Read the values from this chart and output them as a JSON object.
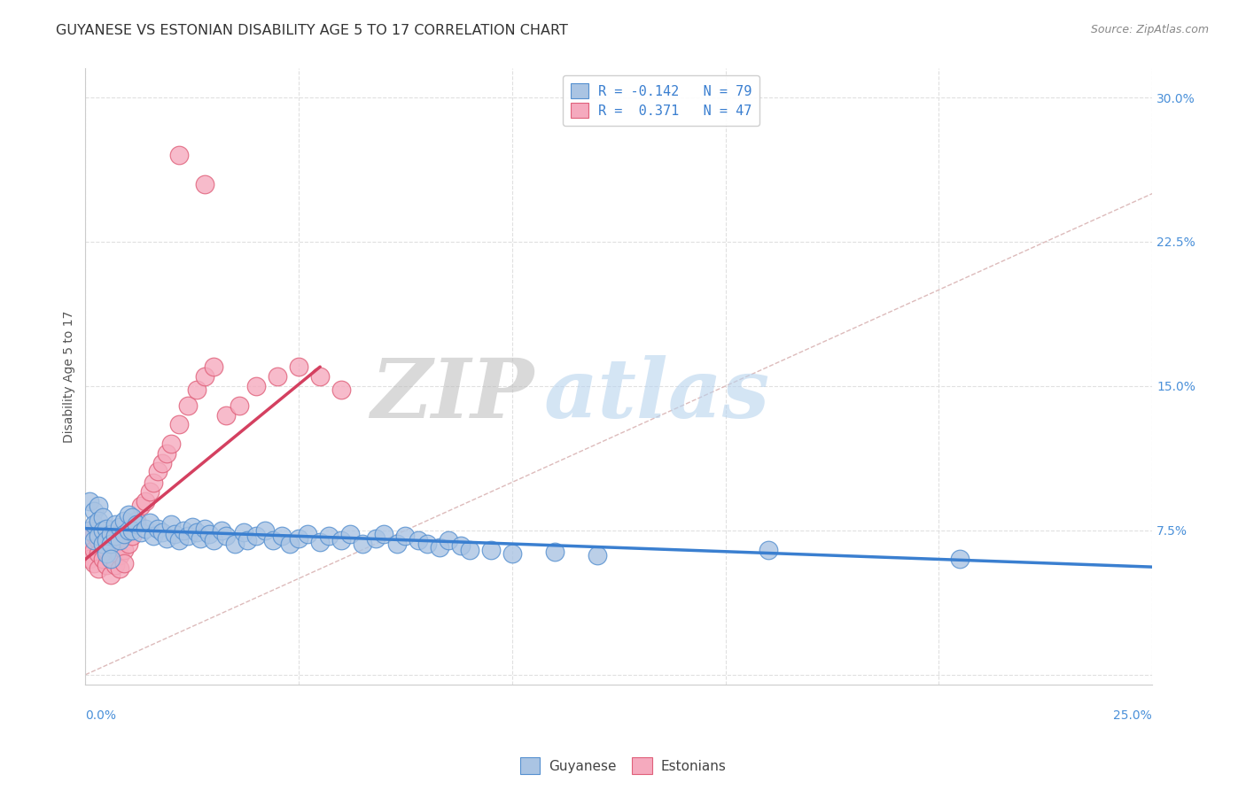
{
  "title": "GUYANESE VS ESTONIAN DISABILITY AGE 5 TO 17 CORRELATION CHART",
  "source": "Source: ZipAtlas.com",
  "ylabel": "Disability Age 5 to 17",
  "ytick_positions": [
    0.0,
    0.075,
    0.15,
    0.225,
    0.3
  ],
  "xtick_positions": [
    0.0,
    0.05,
    0.1,
    0.15,
    0.2,
    0.25
  ],
  "xlim": [
    0.0,
    0.25
  ],
  "ylim": [
    -0.005,
    0.315
  ],
  "watermark_zip": "ZIP",
  "watermark_atlas": "atlas",
  "legend_label1": "R = -0.142   N = 79",
  "legend_label2": "R =  0.371   N = 47",
  "blue_fill": "#aac4e3",
  "blue_edge": "#5590d0",
  "pink_fill": "#f5aabe",
  "pink_edge": "#e0607a",
  "diag_color": "#ddbbbb",
  "blue_trend_color": "#3a7fd0",
  "pink_trend_color": "#d44060",
  "grid_color": "#e0e0e0",
  "blue_trend_x": [
    0.0,
    0.25
  ],
  "blue_trend_y": [
    0.076,
    0.056
  ],
  "pink_trend_x": [
    0.0,
    0.055
  ],
  "pink_trend_y": [
    0.06,
    0.16
  ],
  "guyanese_x": [
    0.001,
    0.001,
    0.002,
    0.002,
    0.002,
    0.003,
    0.003,
    0.003,
    0.004,
    0.004,
    0.004,
    0.005,
    0.005,
    0.005,
    0.006,
    0.006,
    0.006,
    0.007,
    0.007,
    0.008,
    0.008,
    0.009,
    0.009,
    0.01,
    0.01,
    0.011,
    0.011,
    0.012,
    0.013,
    0.014,
    0.015,
    0.016,
    0.017,
    0.018,
    0.019,
    0.02,
    0.021,
    0.022,
    0.023,
    0.024,
    0.025,
    0.026,
    0.027,
    0.028,
    0.029,
    0.03,
    0.032,
    0.033,
    0.035,
    0.037,
    0.038,
    0.04,
    0.042,
    0.044,
    0.046,
    0.048,
    0.05,
    0.052,
    0.055,
    0.057,
    0.06,
    0.062,
    0.065,
    0.068,
    0.07,
    0.073,
    0.075,
    0.078,
    0.08,
    0.083,
    0.085,
    0.088,
    0.09,
    0.095,
    0.1,
    0.11,
    0.12,
    0.16,
    0.205
  ],
  "guyanese_y": [
    0.09,
    0.075,
    0.085,
    0.078,
    0.07,
    0.088,
    0.08,
    0.072,
    0.082,
    0.075,
    0.068,
    0.076,
    0.07,
    0.063,
    0.073,
    0.068,
    0.06,
    0.078,
    0.072,
    0.077,
    0.07,
    0.08,
    0.073,
    0.083,
    0.075,
    0.082,
    0.075,
    0.078,
    0.074,
    0.076,
    0.079,
    0.072,
    0.076,
    0.074,
    0.071,
    0.078,
    0.073,
    0.07,
    0.075,
    0.072,
    0.077,
    0.074,
    0.071,
    0.076,
    0.073,
    0.07,
    0.075,
    0.072,
    0.068,
    0.074,
    0.07,
    0.072,
    0.075,
    0.07,
    0.072,
    0.068,
    0.071,
    0.073,
    0.069,
    0.072,
    0.07,
    0.073,
    0.068,
    0.071,
    0.073,
    0.068,
    0.072,
    0.07,
    0.068,
    0.066,
    0.07,
    0.067,
    0.065,
    0.065,
    0.063,
    0.064,
    0.062,
    0.065,
    0.06
  ],
  "estonian_x": [
    0.001,
    0.001,
    0.001,
    0.002,
    0.002,
    0.002,
    0.003,
    0.003,
    0.003,
    0.004,
    0.004,
    0.005,
    0.005,
    0.005,
    0.006,
    0.006,
    0.007,
    0.007,
    0.008,
    0.008,
    0.009,
    0.009,
    0.01,
    0.011,
    0.012,
    0.013,
    0.014,
    0.015,
    0.016,
    0.017,
    0.018,
    0.019,
    0.02,
    0.022,
    0.024,
    0.026,
    0.028,
    0.03,
    0.033,
    0.036,
    0.04,
    0.045,
    0.05,
    0.055,
    0.06,
    0.022,
    0.028
  ],
  "estonian_y": [
    0.075,
    0.068,
    0.06,
    0.073,
    0.065,
    0.058,
    0.07,
    0.063,
    0.055,
    0.068,
    0.06,
    0.073,
    0.065,
    0.057,
    0.06,
    0.052,
    0.065,
    0.057,
    0.062,
    0.055,
    0.065,
    0.058,
    0.068,
    0.072,
    0.08,
    0.088,
    0.09,
    0.095,
    0.1,
    0.106,
    0.11,
    0.115,
    0.12,
    0.13,
    0.14,
    0.148,
    0.155,
    0.16,
    0.135,
    0.14,
    0.15,
    0.155,
    0.16,
    0.155,
    0.148,
    0.27,
    0.255
  ]
}
